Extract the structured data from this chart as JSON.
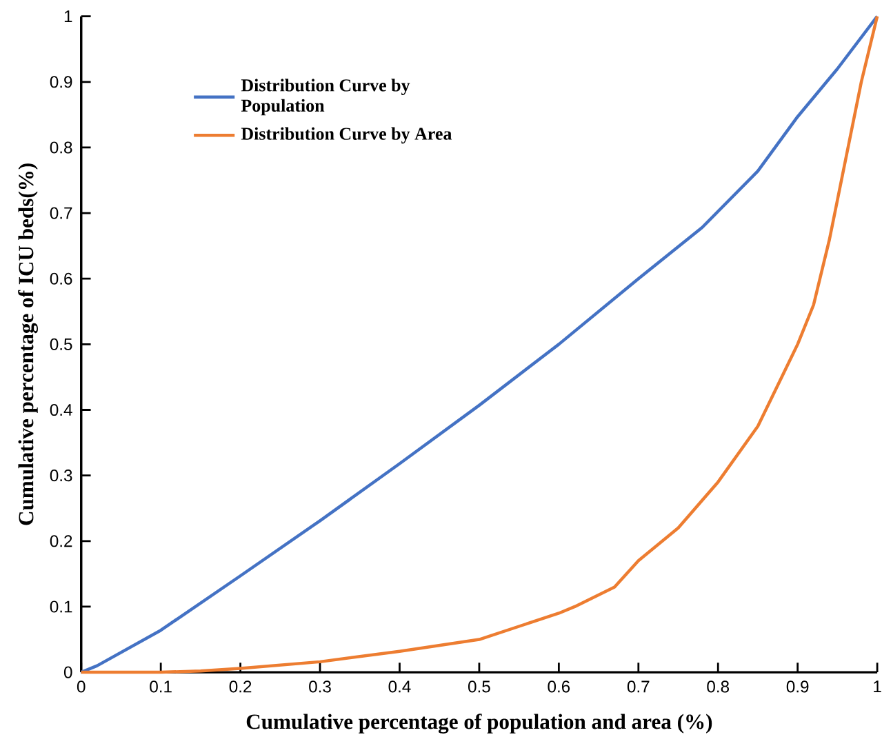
{
  "chart_data": {
    "type": "line",
    "xlabel": "Cumulative percentage of population and area (%)",
    "ylabel": "Cumulative percentage of ICU beds(%)",
    "xlim": [
      0,
      1
    ],
    "ylim": [
      0,
      1
    ],
    "xticks": [
      0,
      0.1,
      0.2,
      0.3,
      0.4,
      0.5,
      0.6,
      0.7,
      0.8,
      0.9,
      1
    ],
    "yticks": [
      0,
      0.1,
      0.2,
      0.3,
      0.4,
      0.5,
      0.6,
      0.7,
      0.8,
      0.9,
      1
    ],
    "legend": "top left",
    "series": [
      {
        "name": "Distribution Curve by Population",
        "color": "#4472c4",
        "x": [
          0,
          0.02,
          0.1,
          0.2,
          0.3,
          0.4,
          0.5,
          0.6,
          0.7,
          0.78,
          0.85,
          0.9,
          0.95,
          1
        ],
        "values": [
          0,
          0.01,
          0.064,
          0.147,
          0.231,
          0.318,
          0.407,
          0.5,
          0.6,
          0.678,
          0.764,
          0.847,
          0.92,
          1
        ]
      },
      {
        "name": "Distribution Curve by Area",
        "color": "#ed7d31",
        "x": [
          0,
          0.1,
          0.15,
          0.2,
          0.3,
          0.4,
          0.5,
          0.6,
          0.62,
          0.67,
          0.7,
          0.75,
          0.8,
          0.85,
          0.88,
          0.9,
          0.92,
          0.94,
          0.96,
          0.98,
          1
        ],
        "values": [
          0,
          0,
          0.002,
          0.006,
          0.016,
          0.032,
          0.05,
          0.09,
          0.1,
          0.13,
          0.17,
          0.22,
          0.29,
          0.375,
          0.45,
          0.5,
          0.56,
          0.66,
          0.78,
          0.9,
          1
        ]
      }
    ]
  }
}
